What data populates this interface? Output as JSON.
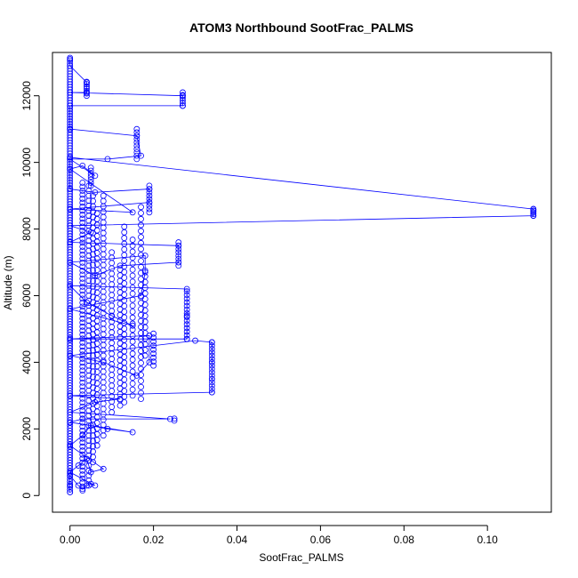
{
  "chart_data": {
    "type": "scatter",
    "title": "ATOM3 Northbound SootFrac_PALMS",
    "xlabel": "SootFrac_PALMS",
    "ylabel": "Altitude (m)",
    "xlim": [
      -0.0042,
      0.1153
    ],
    "ylim": [
      -500,
      13300
    ],
    "xticks": [
      0.0,
      0.02,
      0.04,
      0.06,
      0.08,
      0.1
    ],
    "xtick_labels": [
      "0.00",
      "0.02",
      "0.04",
      "0.06",
      "0.08",
      "0.10"
    ],
    "yticks": [
      0,
      2000,
      4000,
      6000,
      8000,
      10000,
      12000
    ],
    "ytick_labels": [
      "0",
      "2000",
      "4000",
      "6000",
      "8000",
      "10000",
      "12000"
    ],
    "grid": false,
    "legend": "none",
    "marker": "open-circle",
    "connected": true,
    "color": "#0000ff",
    "series": [
      {
        "points": [
          [
            0.0,
            100
          ],
          [
            0.0,
            300
          ],
          [
            0.0,
            600
          ],
          [
            0.002,
            300
          ],
          [
            0.003,
            200
          ],
          [
            0.004,
            300
          ],
          [
            0.005,
            350
          ],
          [
            0.006,
            300
          ],
          [
            0.0,
            700
          ],
          [
            0.002,
            900
          ],
          [
            0.004,
            1100
          ],
          [
            0.005,
            700
          ],
          [
            0.008,
            800
          ],
          [
            0.0,
            1500
          ],
          [
            0.003,
            1800
          ],
          [
            0.005,
            2100
          ],
          [
            0.009,
            2000
          ],
          [
            0.015,
            1900
          ],
          [
            0.0,
            2200
          ],
          [
            0.003,
            2300
          ],
          [
            0.024,
            2300
          ],
          [
            0.0,
            2500
          ],
          [
            0.006,
            2800
          ],
          [
            0.012,
            2900
          ],
          [
            0.0,
            3000
          ],
          [
            0.034,
            3100
          ],
          [
            0.034,
            3500
          ],
          [
            0.034,
            4000
          ],
          [
            0.034,
            4600
          ],
          [
            0.03,
            4650
          ],
          [
            0.0,
            4200
          ],
          [
            0.008,
            4000
          ],
          [
            0.016,
            3600
          ],
          [
            0.019,
            4000
          ],
          [
            0.019,
            4800
          ],
          [
            0.0,
            4700
          ],
          [
            0.028,
            4700
          ],
          [
            0.028,
            5400
          ],
          [
            0.028,
            6200
          ],
          [
            0.0,
            6300
          ],
          [
            0.004,
            5800
          ],
          [
            0.01,
            5400
          ],
          [
            0.015,
            5100
          ],
          [
            0.0,
            5600
          ],
          [
            0.017,
            6000
          ],
          [
            0.018,
            6700
          ],
          [
            0.018,
            7200
          ],
          [
            0.0,
            7000
          ],
          [
            0.006,
            6600
          ],
          [
            0.012,
            6900
          ],
          [
            0.026,
            7000
          ],
          [
            0.026,
            7500
          ],
          [
            0.0,
            7600
          ],
          [
            0.005,
            7900
          ],
          [
            0.0,
            8100
          ],
          [
            0.111,
            8400
          ],
          [
            0.111,
            8550
          ],
          [
            0.111,
            8600
          ],
          [
            0.0,
            10150
          ],
          [
            0.0,
            9200
          ],
          [
            0.006,
            9100
          ],
          [
            0.019,
            9200
          ],
          [
            0.019,
            8800
          ],
          [
            0.0,
            8600
          ],
          [
            0.015,
            8500
          ],
          [
            0.0,
            9800
          ],
          [
            0.003,
            9900
          ],
          [
            0.006,
            9600
          ],
          [
            0.0,
            10100
          ],
          [
            0.009,
            10100
          ],
          [
            0.017,
            10200
          ],
          [
            0.016,
            10800
          ],
          [
            0.0,
            11000
          ],
          [
            0.0,
            11700
          ],
          [
            0.027,
            11700
          ],
          [
            0.027,
            12000
          ],
          [
            0.0,
            12100
          ],
          [
            0.004,
            12100
          ],
          [
            0.004,
            12400
          ],
          [
            0.0,
            12900
          ],
          [
            0.0,
            13100
          ]
        ]
      }
    ],
    "clusters": [
      {
        "x": 0.0,
        "y_from": 100,
        "y_to": 13200,
        "step": 80
      },
      {
        "x": 0.003,
        "y_from": 150,
        "y_to": 9500,
        "step": 120
      },
      {
        "x": 0.0045,
        "y_from": 300,
        "y_to": 9300,
        "step": 150
      },
      {
        "x": 0.0055,
        "y_from": 1000,
        "y_to": 9000,
        "step": 160
      },
      {
        "x": 0.0065,
        "y_from": 1500,
        "y_to": 8500,
        "step": 170
      },
      {
        "x": 0.008,
        "y_from": 1800,
        "y_to": 9100,
        "step": 160
      },
      {
        "x": 0.01,
        "y_from": 2500,
        "y_to": 7400,
        "step": 160
      },
      {
        "x": 0.012,
        "y_from": 2700,
        "y_to": 6800,
        "step": 170
      },
      {
        "x": 0.013,
        "y_from": 2800,
        "y_to": 8200,
        "step": 170
      },
      {
        "x": 0.015,
        "y_from": 3000,
        "y_to": 7800,
        "step": 180
      },
      {
        "x": 0.017,
        "y_from": 2900,
        "y_to": 8800,
        "step": 180
      },
      {
        "x": 0.018,
        "y_from": 4200,
        "y_to": 6800,
        "step": 170
      },
      {
        "x": 0.02,
        "y_from": 3900,
        "y_to": 4900,
        "step": 120
      },
      {
        "x": 0.025,
        "y_from": 2250,
        "y_to": 2350,
        "step": 60
      },
      {
        "x": 0.028,
        "y_from": 4700,
        "y_to": 6200,
        "step": 110
      },
      {
        "x": 0.034,
        "y_from": 3100,
        "y_to": 4600,
        "step": 100
      },
      {
        "x": 0.026,
        "y_from": 6900,
        "y_to": 7600,
        "step": 100
      },
      {
        "x": 0.019,
        "y_from": 8500,
        "y_to": 9300,
        "step": 100
      },
      {
        "x": 0.016,
        "y_from": 10100,
        "y_to": 11000,
        "step": 100
      },
      {
        "x": 0.027,
        "y_from": 11700,
        "y_to": 12100,
        "step": 80
      },
      {
        "x": 0.005,
        "y_from": 9300,
        "y_to": 9900,
        "step": 90
      },
      {
        "x": 0.004,
        "y_from": 12000,
        "y_to": 12450,
        "step": 70
      },
      {
        "x": 0.111,
        "y_from": 8400,
        "y_to": 8600,
        "step": 50
      }
    ]
  }
}
